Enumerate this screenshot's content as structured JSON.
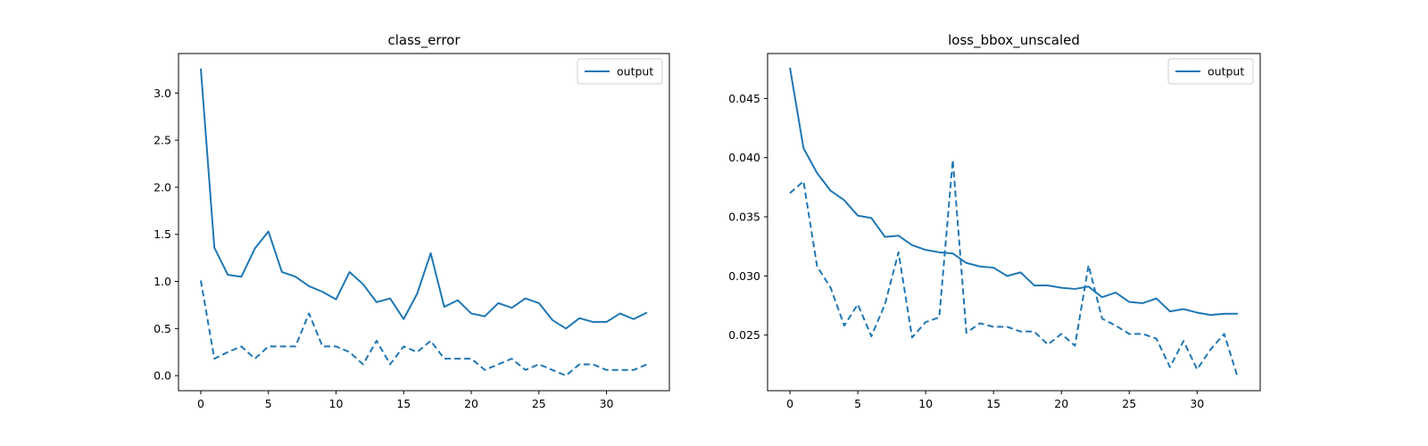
{
  "chart_data": [
    {
      "type": "line",
      "title": "class_error",
      "xlabel": "",
      "ylabel": "",
      "xlim": [
        -1.65,
        34.65
      ],
      "ylim": [
        -0.16,
        3.42
      ],
      "xticks": [
        0,
        5,
        10,
        15,
        20,
        25,
        30
      ],
      "yticks": [
        0.0,
        0.5,
        1.0,
        1.5,
        2.0,
        2.5,
        3.0
      ],
      "ytick_labels": [
        "0.0",
        "0.5",
        "1.0",
        "1.5",
        "2.0",
        "2.5",
        "3.0"
      ],
      "grid": false,
      "legend_placement": "upper right",
      "color": "#1f77b4",
      "x": [
        0,
        1,
        2,
        3,
        4,
        5,
        6,
        7,
        8,
        9,
        10,
        11,
        12,
        13,
        14,
        15,
        16,
        17,
        18,
        19,
        20,
        21,
        22,
        23,
        24,
        25,
        26,
        27,
        28,
        29,
        30,
        31,
        32,
        33
      ],
      "series": [
        {
          "name": "output",
          "style": "solid",
          "values": [
            3.26,
            1.36,
            1.07,
            1.05,
            1.35,
            1.53,
            1.1,
            1.05,
            0.95,
            0.89,
            0.81,
            1.1,
            0.97,
            0.78,
            0.82,
            0.6,
            0.87,
            1.3,
            0.73,
            0.8,
            0.66,
            0.63,
            0.77,
            0.72,
            0.82,
            0.77,
            0.59,
            0.5,
            0.61,
            0.57,
            0.57,
            0.66,
            0.6,
            0.67
          ]
        },
        {
          "style": "dashed",
          "values": [
            1.01,
            0.18,
            0.25,
            0.31,
            0.18,
            0.31,
            0.31,
            0.31,
            0.66,
            0.31,
            0.31,
            0.25,
            0.12,
            0.37,
            0.12,
            0.31,
            0.25,
            0.37,
            0.18,
            0.18,
            0.18,
            0.06,
            0.12,
            0.18,
            0.06,
            0.12,
            0.06,
            0.0,
            0.12,
            0.12,
            0.06,
            0.06,
            0.06,
            0.12
          ]
        }
      ]
    },
    {
      "type": "line",
      "title": "loss_bbox_unscaled",
      "xlabel": "",
      "ylabel": "",
      "xlim": [
        -1.65,
        34.65
      ],
      "ylim": [
        0.0203,
        0.0488
      ],
      "xticks": [
        0,
        5,
        10,
        15,
        20,
        25,
        30
      ],
      "yticks": [
        0.025,
        0.03,
        0.035,
        0.04,
        0.045
      ],
      "ytick_labels": [
        "0.025",
        "0.030",
        "0.035",
        "0.040",
        "0.045"
      ],
      "grid": false,
      "legend_placement": "upper right",
      "color": "#1f77b4",
      "x": [
        0,
        1,
        2,
        3,
        4,
        5,
        6,
        7,
        8,
        9,
        10,
        11,
        12,
        13,
        14,
        15,
        16,
        17,
        18,
        19,
        20,
        21,
        22,
        23,
        24,
        25,
        26,
        27,
        28,
        29,
        30,
        31,
        32,
        33
      ],
      "series": [
        {
          "name": "output",
          "style": "solid",
          "values": [
            0.0476,
            0.0408,
            0.0387,
            0.0372,
            0.0364,
            0.0351,
            0.0349,
            0.0333,
            0.0334,
            0.0326,
            0.0322,
            0.032,
            0.0319,
            0.0311,
            0.0308,
            0.0307,
            0.03,
            0.0303,
            0.0292,
            0.0292,
            0.029,
            0.0289,
            0.0291,
            0.0282,
            0.0286,
            0.0278,
            0.0277,
            0.0281,
            0.027,
            0.0272,
            0.0269,
            0.0267,
            0.0268,
            0.0268
          ]
        },
        {
          "style": "dashed",
          "values": [
            0.037,
            0.038,
            0.0308,
            0.029,
            0.0258,
            0.0276,
            0.0249,
            0.0276,
            0.032,
            0.0248,
            0.0261,
            0.0265,
            0.0398,
            0.0252,
            0.026,
            0.0257,
            0.0257,
            0.0253,
            0.0253,
            0.0242,
            0.0251,
            0.0241,
            0.0309,
            0.0264,
            0.0258,
            0.0251,
            0.0251,
            0.0247,
            0.0223,
            0.0245,
            0.0221,
            0.0238,
            0.0251,
            0.0214
          ]
        }
      ]
    }
  ]
}
